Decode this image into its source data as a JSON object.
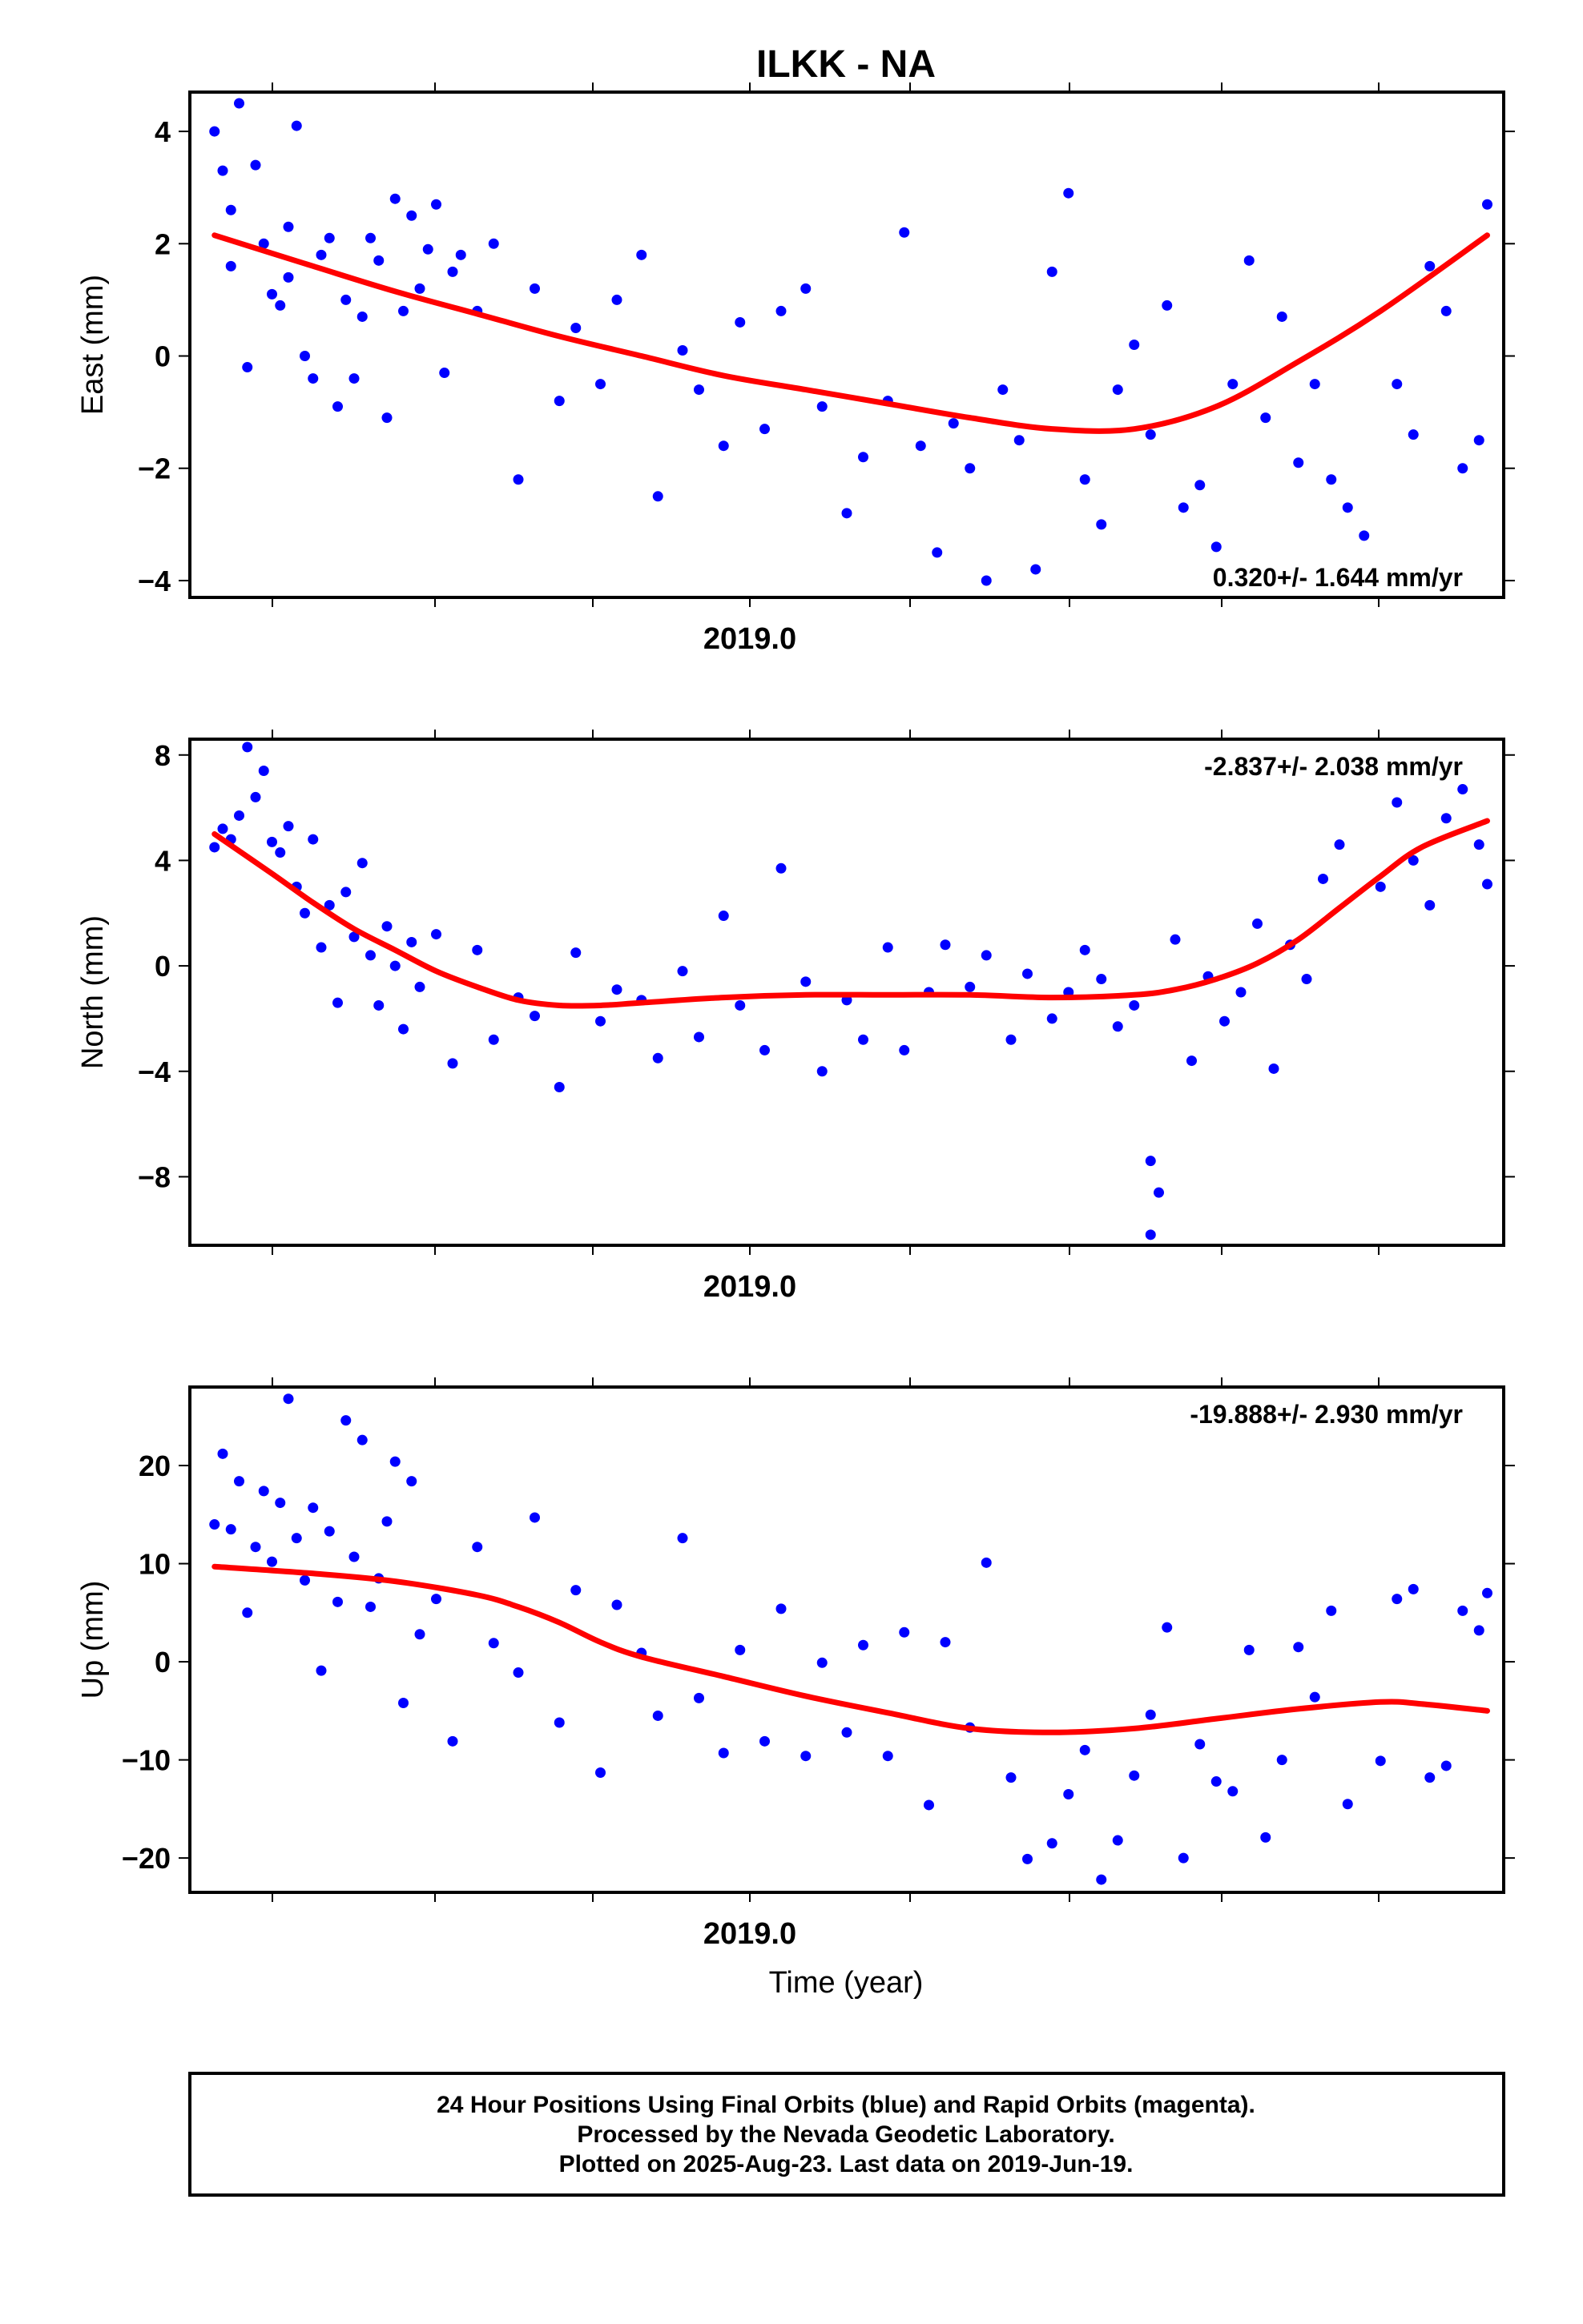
{
  "page": {
    "title": "ILKK - NA",
    "time_label": "Time (year)",
    "footer": [
      "24 Hour Positions Using Final Orbits (blue) and Rapid Orbits (magenta).",
      "Processed by the Nevada Geodetic Laboratory.",
      "Plotted on 2025-Aug-23. Last data on 2019-Jun-19."
    ],
    "colors": {
      "points": "#0000ff",
      "fit": "#ff0000",
      "axes": "#000000"
    }
  },
  "chart_data": [
    {
      "type": "scatter",
      "component": "east",
      "ylabel": "East (mm)",
      "ylim": [
        -4.3,
        4.7
      ],
      "yticks": [
        4,
        2,
        0,
        -2,
        -4
      ],
      "ytick_labels": [
        "4",
        "2",
        "0",
        "−2",
        "−4"
      ],
      "xlim": [
        2018.15,
        2019.75
      ],
      "xtick_label": "2019.0",
      "rate_text": "0.320+/- 1.644 mm/yr",
      "fit_curve": {
        "x": [
          2018.18,
          2018.3,
          2018.4,
          2018.5,
          2018.6,
          2018.7,
          2018.8,
          2018.9,
          2019.0,
          2019.1,
          2019.2,
          2019.3,
          2019.4,
          2019.5,
          2019.6,
          2019.73
        ],
        "y": [
          2.15,
          1.6,
          1.15,
          0.75,
          0.35,
          0.0,
          -0.35,
          -0.6,
          -0.85,
          -1.1,
          -1.3,
          -1.3,
          -0.9,
          -0.1,
          0.8,
          2.15
        ]
      },
      "points": {
        "x": [
          2018.18,
          2018.19,
          2018.2,
          2018.2,
          2018.21,
          2018.22,
          2018.23,
          2018.24,
          2018.25,
          2018.26,
          2018.27,
          2018.27,
          2018.28,
          2018.29,
          2018.3,
          2018.31,
          2018.32,
          2018.33,
          2018.34,
          2018.35,
          2018.36,
          2018.37,
          2018.38,
          2018.39,
          2018.4,
          2018.41,
          2018.42,
          2018.43,
          2018.44,
          2018.45,
          2018.46,
          2018.47,
          2018.48,
          2018.5,
          2018.52,
          2018.55,
          2018.57,
          2018.6,
          2018.62,
          2018.65,
          2018.67,
          2018.7,
          2018.72,
          2018.75,
          2018.77,
          2018.8,
          2018.82,
          2018.85,
          2018.87,
          2018.9,
          2018.92,
          2018.95,
          2018.97,
          2019.0,
          2019.02,
          2019.04,
          2019.06,
          2019.08,
          2019.1,
          2019.12,
          2019.14,
          2019.16,
          2019.18,
          2019.2,
          2019.22,
          2019.24,
          2019.26,
          2019.28,
          2019.3,
          2019.32,
          2019.34,
          2019.36,
          2019.38,
          2019.4,
          2019.42,
          2019.44,
          2019.46,
          2019.48,
          2019.5,
          2019.52,
          2019.54,
          2019.56,
          2019.58,
          2019.62,
          2019.64,
          2019.66,
          2019.68,
          2019.7,
          2019.72,
          2019.73
        ],
        "y": [
          4.0,
          3.3,
          2.6,
          1.6,
          4.5,
          -0.2,
          3.4,
          2.0,
          1.1,
          0.9,
          2.3,
          1.4,
          4.1,
          0.0,
          -0.4,
          1.8,
          2.1,
          -0.9,
          1.0,
          -0.4,
          0.7,
          2.1,
          1.7,
          -1.1,
          2.8,
          0.8,
          2.5,
          1.2,
          1.9,
          2.7,
          -0.3,
          1.5,
          1.8,
          0.8,
          2.0,
          -2.2,
          1.2,
          -0.8,
          0.5,
          -0.5,
          1.0,
          1.8,
          -2.5,
          0.1,
          -0.6,
          -1.6,
          0.6,
          -1.3,
          0.8,
          1.2,
          -0.9,
          -2.8,
          -1.8,
          -0.8,
          2.2,
          -1.6,
          -3.5,
          -1.2,
          -2.0,
          -4.0,
          -0.6,
          -1.5,
          -3.8,
          1.5,
          2.9,
          -2.2,
          -3.0,
          -0.6,
          0.2,
          -1.4,
          0.9,
          -2.7,
          -2.3,
          -3.4,
          -0.5,
          1.7,
          -1.1,
          0.7,
          -1.9,
          -0.5,
          -2.2,
          -2.7,
          -3.2,
          -0.5,
          -1.4,
          1.6,
          0.8,
          -2.0,
          -1.5,
          2.7
        ]
      }
    },
    {
      "type": "scatter",
      "component": "north",
      "ylabel": "North (mm)",
      "ylim": [
        -10.6,
        8.6
      ],
      "yticks": [
        8,
        4,
        0,
        -4,
        -8
      ],
      "ytick_labels": [
        "8",
        "4",
        "0",
        "−4",
        "−8"
      ],
      "xlim": [
        2018.15,
        2019.75
      ],
      "xtick_label": "2019.0",
      "rate_text": "-2.837+/- 2.038 mm/yr",
      "fit_curve": {
        "x": [
          2018.18,
          2018.25,
          2018.3,
          2018.35,
          2018.4,
          2018.45,
          2018.5,
          2018.55,
          2018.6,
          2018.65,
          2018.7,
          2018.8,
          2018.9,
          2019.0,
          2019.1,
          2019.2,
          2019.3,
          2019.35,
          2019.4,
          2019.45,
          2019.5,
          2019.55,
          2019.6,
          2019.65,
          2019.73
        ],
        "y": [
          5.0,
          3.5,
          2.4,
          1.4,
          0.6,
          -0.2,
          -0.8,
          -1.3,
          -1.5,
          -1.5,
          -1.4,
          -1.2,
          -1.1,
          -1.1,
          -1.1,
          -1.2,
          -1.1,
          -0.9,
          -0.5,
          0.1,
          1.0,
          2.2,
          3.4,
          4.5,
          5.5
        ]
      },
      "points": {
        "x": [
          2018.18,
          2018.19,
          2018.2,
          2018.21,
          2018.22,
          2018.23,
          2018.24,
          2018.25,
          2018.26,
          2018.27,
          2018.28,
          2018.29,
          2018.3,
          2018.31,
          2018.32,
          2018.33,
          2018.34,
          2018.35,
          2018.36,
          2018.37,
          2018.38,
          2018.39,
          2018.4,
          2018.41,
          2018.42,
          2018.43,
          2018.45,
          2018.47,
          2018.5,
          2018.52,
          2018.55,
          2018.57,
          2018.6,
          2018.62,
          2018.65,
          2018.67,
          2018.7,
          2018.72,
          2018.75,
          2018.77,
          2018.8,
          2018.82,
          2018.85,
          2018.87,
          2018.9,
          2018.92,
          2018.95,
          2018.97,
          2019.0,
          2019.02,
          2019.05,
          2019.07,
          2019.1,
          2019.12,
          2019.15,
          2019.17,
          2019.2,
          2019.22,
          2019.24,
          2019.26,
          2019.28,
          2019.3,
          2019.32,
          2019.32,
          2019.33,
          2019.35,
          2019.37,
          2019.39,
          2019.41,
          2019.43,
          2019.45,
          2019.47,
          2019.49,
          2019.51,
          2019.53,
          2019.55,
          2019.6,
          2019.62,
          2019.64,
          2019.66,
          2019.68,
          2019.7,
          2019.72,
          2019.73
        ],
        "y": [
          4.5,
          5.2,
          4.8,
          5.7,
          8.3,
          6.4,
          7.4,
          4.7,
          4.3,
          5.3,
          3.0,
          2.0,
          4.8,
          0.7,
          2.3,
          -1.4,
          2.8,
          1.1,
          3.9,
          0.4,
          -1.5,
          1.5,
          0.0,
          -2.4,
          0.9,
          -0.8,
          1.2,
          -3.7,
          0.6,
          -2.8,
          -1.2,
          -1.9,
          -4.6,
          0.5,
          -2.1,
          -0.9,
          -1.3,
          -3.5,
          -0.2,
          -2.7,
          1.9,
          -1.5,
          -3.2,
          3.7,
          -0.6,
          -4.0,
          -1.3,
          -2.8,
          0.7,
          -3.2,
          -1.0,
          0.8,
          -0.8,
          0.4,
          -2.8,
          -0.3,
          -2.0,
          -1.0,
          0.6,
          -0.5,
          -2.3,
          -1.5,
          -7.4,
          -10.2,
          -8.6,
          1.0,
          -3.6,
          -0.4,
          -2.1,
          -1.0,
          1.6,
          -3.9,
          0.8,
          -0.5,
          3.3,
          4.6,
          3.0,
          6.2,
          4.0,
          2.3,
          5.6,
          6.7,
          4.6,
          3.1
        ]
      }
    },
    {
      "type": "scatter",
      "component": "up",
      "ylabel": "Up (mm)",
      "ylim": [
        -23.5,
        28.0
      ],
      "yticks": [
        20,
        10,
        0,
        -10,
        -20
      ],
      "ytick_labels": [
        "20",
        "10",
        "0",
        "−10",
        "−20"
      ],
      "xlim": [
        2018.15,
        2019.75
      ],
      "xtick_label": "2019.0",
      "rate_text": "-19.888+/- 2.930 mm/yr",
      "fit_curve": {
        "x": [
          2018.18,
          2018.3,
          2018.4,
          2018.5,
          2018.55,
          2018.6,
          2018.65,
          2018.7,
          2018.8,
          2018.9,
          2019.0,
          2019.1,
          2019.2,
          2019.3,
          2019.4,
          2019.5,
          2019.6,
          2019.65,
          2019.73
        ],
        "y": [
          9.7,
          9.0,
          8.2,
          6.8,
          5.6,
          4.0,
          2.0,
          0.5,
          -1.5,
          -3.5,
          -5.2,
          -6.8,
          -7.2,
          -6.8,
          -5.8,
          -4.8,
          -4.1,
          -4.3,
          -5.0
        ]
      },
      "points": {
        "x": [
          2018.18,
          2018.19,
          2018.2,
          2018.21,
          2018.22,
          2018.23,
          2018.24,
          2018.25,
          2018.26,
          2018.27,
          2018.28,
          2018.29,
          2018.3,
          2018.31,
          2018.32,
          2018.33,
          2018.34,
          2018.35,
          2018.36,
          2018.37,
          2018.38,
          2018.39,
          2018.4,
          2018.41,
          2018.42,
          2018.43,
          2018.45,
          2018.47,
          2018.5,
          2018.52,
          2018.55,
          2018.57,
          2018.6,
          2018.62,
          2018.65,
          2018.67,
          2018.7,
          2018.72,
          2018.75,
          2018.77,
          2018.8,
          2018.82,
          2018.85,
          2018.87,
          2018.9,
          2018.92,
          2018.95,
          2018.97,
          2019.0,
          2019.02,
          2019.05,
          2019.07,
          2019.1,
          2019.12,
          2019.15,
          2019.17,
          2019.2,
          2019.22,
          2019.24,
          2019.26,
          2019.28,
          2019.3,
          2019.32,
          2019.34,
          2019.36,
          2019.38,
          2019.4,
          2019.42,
          2019.44,
          2019.46,
          2019.48,
          2019.5,
          2019.52,
          2019.54,
          2019.56,
          2019.6,
          2019.62,
          2019.64,
          2019.66,
          2019.68,
          2019.7,
          2019.72,
          2019.73
        ],
        "y": [
          14.0,
          21.2,
          13.5,
          18.4,
          5.0,
          11.7,
          17.4,
          10.2,
          16.2,
          26.8,
          12.6,
          8.3,
          15.7,
          -0.9,
          13.3,
          6.1,
          24.6,
          10.7,
          22.6,
          5.6,
          8.5,
          14.3,
          20.4,
          -4.2,
          18.4,
          2.8,
          6.4,
          -8.1,
          11.7,
          1.9,
          -1.1,
          14.7,
          -6.2,
          7.3,
          -11.3,
          5.8,
          0.9,
          -5.5,
          12.6,
          -3.7,
          -9.3,
          1.2,
          -8.1,
          5.4,
          -9.6,
          -0.1,
          -7.2,
          1.7,
          -9.6,
          3.0,
          -14.6,
          2.0,
          -6.7,
          10.1,
          -11.8,
          -20.1,
          -18.5,
          -13.5,
          -9.0,
          -22.2,
          -18.2,
          -11.6,
          -5.4,
          3.5,
          -20.0,
          -8.4,
          -12.2,
          -13.2,
          1.2,
          -17.9,
          -10.0,
          1.5,
          -3.6,
          5.2,
          -14.5,
          -10.1,
          6.4,
          7.4,
          -11.8,
          -10.6,
          5.2,
          3.2,
          7.0
        ]
      }
    }
  ]
}
